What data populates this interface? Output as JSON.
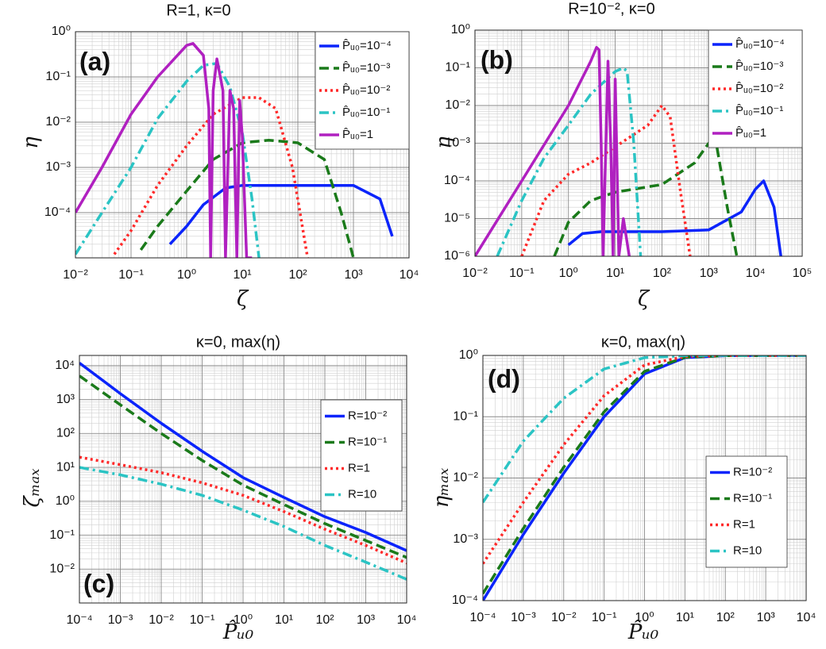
{
  "chart_data": [
    {
      "type": "line",
      "title": "R=1, κ=0",
      "panel_label": "(a)",
      "x_label": "ζ",
      "y_label": "η",
      "log_x": true,
      "log_y": true,
      "grid": true,
      "legend": "upper right",
      "xlim": [
        0.01,
        10000
      ],
      "ylim": [
        1e-05,
        1
      ],
      "xticks": [
        {
          "value": 0.01,
          "label": "10⁻²"
        },
        {
          "value": 0.1,
          "label": "10⁻¹"
        },
        {
          "value": 1,
          "label": "10⁰"
        },
        {
          "value": 10,
          "label": "10¹"
        },
        {
          "value": 100,
          "label": "10²"
        },
        {
          "value": 1000,
          "label": "10³"
        },
        {
          "value": 10000,
          "label": "10⁴"
        }
      ],
      "yticks": [
        {
          "value": 0.0001,
          "label": "10⁻⁴"
        },
        {
          "value": 0.001,
          "label": "10⁻³"
        },
        {
          "value": 0.01,
          "label": "10⁻²"
        },
        {
          "value": 0.1,
          "label": "10⁻¹"
        },
        {
          "value": 1,
          "label": "10⁰"
        }
      ],
      "series": [
        {
          "name": "P̂ᵤ₀=10⁻⁴",
          "color": "#0b24fb",
          "style": "solid",
          "x": [
            0.5,
            1,
            2,
            5,
            10,
            100,
            1000,
            3000,
            5000
          ],
          "values": [
            2e-05,
            5e-05,
            0.00015,
            0.00035,
            0.0004,
            0.0004,
            0.0004,
            0.0002,
            3e-05
          ]
        },
        {
          "name": "P̂ᵤ₀=10⁻³",
          "color": "#1a7a1a",
          "style": "dashed",
          "x": [
            0.15,
            0.3,
            1,
            3,
            10,
            30,
            100,
            300,
            600,
            1000
          ],
          "values": [
            1.5e-05,
            5e-05,
            0.0003,
            0.0015,
            0.0035,
            0.004,
            0.0035,
            0.0015,
            0.0001,
            1e-05
          ]
        },
        {
          "name": "P̂ᵤ₀=10⁻²",
          "color": "#ff2a2a",
          "style": "dotted",
          "x": [
            0.05,
            0.1,
            0.3,
            1,
            3,
            10,
            20,
            40,
            80,
            150
          ],
          "values": [
            1.2e-05,
            4e-05,
            0.0004,
            0.003,
            0.015,
            0.035,
            0.035,
            0.02,
            0.001,
            1e-05
          ]
        },
        {
          "name": "P̂ᵤ₀=10⁻¹",
          "color": "#2bc4c4",
          "style": "dashdot",
          "x": [
            0.01,
            0.03,
            0.1,
            0.3,
            1,
            2,
            3.5,
            6,
            10,
            15,
            20
          ],
          "values": [
            1.2e-05,
            0.0001,
            0.001,
            0.012,
            0.08,
            0.18,
            0.2,
            0.06,
            0.006,
            0.0002,
            1e-05
          ]
        },
        {
          "name": "P̂ᵤ₀=1",
          "color": "#b020c0",
          "style": "solid",
          "x": [
            0.01,
            0.03,
            0.1,
            0.3,
            1,
            1.3,
            2,
            2.5,
            2.7,
            3,
            3.5,
            4.5,
            5,
            6,
            7,
            8,
            9,
            10,
            12,
            15
          ],
          "values": [
            0.0001,
            0.001,
            0.015,
            0.1,
            0.5,
            0.55,
            0.3,
            0.02,
            1e-05,
            0.05,
            0.25,
            0.05,
            1e-05,
            0.05,
            0.02,
            1e-05,
            0.03,
            0.005,
            1e-05,
            1e-05
          ]
        }
      ]
    },
    {
      "type": "line",
      "title": "R=10⁻², κ=0",
      "panel_label": "(b)",
      "x_label": "ζ",
      "y_label": "η",
      "log_x": true,
      "log_y": true,
      "grid": true,
      "legend": "upper right",
      "xlim": [
        0.01,
        100000
      ],
      "ylim": [
        1e-06,
        1
      ],
      "xticks": [
        {
          "value": 0.01,
          "label": "10⁻²"
        },
        {
          "value": 0.1,
          "label": "10⁻¹"
        },
        {
          "value": 1,
          "label": "10⁰"
        },
        {
          "value": 10,
          "label": "10¹"
        },
        {
          "value": 100,
          "label": "10²"
        },
        {
          "value": 1000,
          "label": "10³"
        },
        {
          "value": 10000,
          "label": "10⁴"
        },
        {
          "value": 100000,
          "label": "10⁵"
        }
      ],
      "yticks": [
        {
          "value": 1e-06,
          "label": "10⁻⁶"
        },
        {
          "value": 1e-05,
          "label": "10⁻⁵"
        },
        {
          "value": 0.0001,
          "label": "10⁻⁴"
        },
        {
          "value": 0.001,
          "label": "10⁻³"
        },
        {
          "value": 0.01,
          "label": "10⁻²"
        },
        {
          "value": 0.1,
          "label": "10⁻¹"
        },
        {
          "value": 1,
          "label": "10⁰"
        }
      ],
      "series": [
        {
          "name": "P̂ᵤ₀=10⁻⁴",
          "color": "#0b24fb",
          "style": "solid",
          "x": [
            1,
            2,
            5,
            10,
            100,
            1000,
            5000,
            10000,
            15000,
            25000,
            35000
          ],
          "values": [
            2e-06,
            4e-06,
            4.5e-06,
            4.5e-06,
            4.5e-06,
            5e-06,
            1.5e-05,
            6e-05,
            0.0001,
            2e-05,
            1e-06
          ]
        },
        {
          "name": "P̂ᵤ₀=10⁻³",
          "color": "#1a7a1a",
          "style": "dashed",
          "x": [
            0.5,
            1,
            3,
            10,
            100,
            500,
            1000,
            1500,
            2500,
            4000
          ],
          "values": [
            1e-06,
            8e-06,
            3e-05,
            5e-05,
            8e-05,
            0.0003,
            0.001,
            0.0008,
            2e-05,
            1e-06
          ]
        },
        {
          "name": "P̂ᵤ₀=10⁻²",
          "color": "#ff2a2a",
          "style": "dotted",
          "x": [
            0.1,
            0.3,
            1,
            3,
            10,
            50,
            100,
            150,
            250,
            400
          ],
          "values": [
            1e-06,
            3e-05,
            0.00015,
            0.0003,
            0.0008,
            0.003,
            0.01,
            0.005,
            5e-05,
            1e-06
          ]
        },
        {
          "name": "P̂ᵤ₀=10⁻¹",
          "color": "#2bc4c4",
          "style": "dashdot",
          "x": [
            0.03,
            0.1,
            0.3,
            1,
            3,
            10,
            15,
            18,
            25,
            35
          ],
          "values": [
            1e-06,
            3e-05,
            0.0004,
            0.003,
            0.02,
            0.08,
            0.1,
            0.08,
            0.001,
            1e-06
          ]
        },
        {
          "name": "P̂ᵤ₀=1",
          "color": "#b020c0",
          "style": "solid",
          "x": [
            0.01,
            0.1,
            1,
            3,
            4,
            4.5,
            5,
            5.5,
            7,
            8,
            9,
            10,
            12,
            15,
            20
          ],
          "values": [
            1e-06,
            0.0001,
            0.01,
            0.15,
            0.35,
            0.3,
            0.001,
            1e-06,
            0.15,
            0.001,
            1e-06,
            0.05,
            1e-06,
            1e-05,
            1e-06
          ]
        }
      ]
    },
    {
      "type": "line",
      "title": "κ=0, max(η)",
      "panel_label": "(c)",
      "x_label": "P̂ᵤ₀",
      "y_label": "ζₘₐₓ",
      "log_x": true,
      "log_y": true,
      "grid": true,
      "legend": "right",
      "xlim": [
        0.0001,
        10000
      ],
      "ylim": [
        0.001,
        20000
      ],
      "xticks": [
        {
          "value": 0.0001,
          "label": "10⁻⁴"
        },
        {
          "value": 0.001,
          "label": "10⁻³"
        },
        {
          "value": 0.01,
          "label": "10⁻²"
        },
        {
          "value": 0.1,
          "label": "10⁻¹"
        },
        {
          "value": 1,
          "label": "10⁰"
        },
        {
          "value": 10,
          "label": "10¹"
        },
        {
          "value": 100,
          "label": "10²"
        },
        {
          "value": 1000,
          "label": "10³"
        },
        {
          "value": 10000,
          "label": "10⁴"
        }
      ],
      "yticks": [
        {
          "value": 0.01,
          "label": "10⁻²"
        },
        {
          "value": 0.1,
          "label": "10⁻¹"
        },
        {
          "value": 1,
          "label": "10⁰"
        },
        {
          "value": 10,
          "label": "10¹"
        },
        {
          "value": 100,
          "label": "10²"
        },
        {
          "value": 1000,
          "label": "10³"
        },
        {
          "value": 10000,
          "label": "10⁴"
        }
      ],
      "series": [
        {
          "name": "R=10⁻²",
          "color": "#0b24fb",
          "style": "solid",
          "x": [
            0.0001,
            0.001,
            0.01,
            0.1,
            1,
            10,
            100,
            1000,
            10000
          ],
          "values": [
            12000,
            1500,
            200,
            30,
            5,
            1.3,
            0.35,
            0.12,
            0.035
          ]
        },
        {
          "name": "R=10⁻¹",
          "color": "#1a7a1a",
          "style": "dashed",
          "x": [
            0.0001,
            0.001,
            0.01,
            0.1,
            1,
            10,
            100,
            1000,
            10000
          ],
          "values": [
            5000,
            700,
            100,
            16,
            3,
            0.8,
            0.22,
            0.07,
            0.022
          ]
        },
        {
          "name": "R=1",
          "color": "#ff2a2a",
          "style": "dotted",
          "x": [
            0.0001,
            0.001,
            0.01,
            0.1,
            1,
            10,
            100,
            1000,
            10000
          ],
          "values": [
            20,
            12,
            7,
            3.5,
            1.5,
            0.5,
            0.15,
            0.05,
            0.015
          ]
        },
        {
          "name": "R=10",
          "color": "#2bc4c4",
          "style": "dashdot",
          "x": [
            0.0001,
            0.001,
            0.01,
            0.1,
            1,
            10,
            100,
            1000,
            10000
          ],
          "values": [
            10,
            6,
            3.2,
            1.5,
            0.55,
            0.18,
            0.05,
            0.016,
            0.005
          ]
        }
      ]
    },
    {
      "type": "line",
      "title": "κ=0, max(η)",
      "panel_label": "(d)",
      "x_label": "P̂ᵤ₀",
      "y_label": "ηₘₐₓ",
      "log_x": true,
      "log_y": true,
      "grid": true,
      "legend": "lower right",
      "xlim": [
        0.0001,
        10000
      ],
      "ylim": [
        0.0001,
        1
      ],
      "xticks": [
        {
          "value": 0.0001,
          "label": "10⁻⁴"
        },
        {
          "value": 0.001,
          "label": "10⁻³"
        },
        {
          "value": 0.01,
          "label": "10⁻²"
        },
        {
          "value": 0.1,
          "label": "10⁻¹"
        },
        {
          "value": 1,
          "label": "10⁰"
        },
        {
          "value": 10,
          "label": "10¹"
        },
        {
          "value": 100,
          "label": "10²"
        },
        {
          "value": 1000,
          "label": "10³"
        },
        {
          "value": 10000,
          "label": "10⁴"
        }
      ],
      "yticks": [
        {
          "value": 0.0001,
          "label": "10⁻⁴"
        },
        {
          "value": 0.001,
          "label": "10⁻³"
        },
        {
          "value": 0.01,
          "label": "10⁻²"
        },
        {
          "value": 0.1,
          "label": "10⁻¹"
        },
        {
          "value": 1,
          "label": "10⁰"
        }
      ],
      "series": [
        {
          "name": "R=10⁻²",
          "color": "#0b24fb",
          "style": "solid",
          "x": [
            0.0001,
            0.001,
            0.01,
            0.1,
            1,
            10,
            100,
            1000,
            10000
          ],
          "values": [
            0.0001,
            0.0012,
            0.012,
            0.1,
            0.5,
            0.92,
            0.99,
            1,
            1
          ]
        },
        {
          "name": "R=10⁻¹",
          "color": "#1a7a1a",
          "style": "dashed",
          "x": [
            0.0001,
            0.001,
            0.01,
            0.1,
            1,
            10,
            100,
            1000,
            10000
          ],
          "values": [
            0.00013,
            0.0015,
            0.015,
            0.12,
            0.55,
            0.93,
            0.99,
            1,
            1
          ]
        },
        {
          "name": "R=1",
          "color": "#ff2a2a",
          "style": "dotted",
          "x": [
            0.0001,
            0.001,
            0.01,
            0.1,
            1,
            10,
            100,
            1000,
            10000
          ],
          "values": [
            0.0004,
            0.004,
            0.035,
            0.22,
            0.7,
            0.96,
            1,
            1,
            1
          ]
        },
        {
          "name": "R=10",
          "color": "#2bc4c4",
          "style": "dashdot",
          "x": [
            0.0001,
            0.001,
            0.01,
            0.1,
            1,
            10,
            100,
            1000,
            10000
          ],
          "values": [
            0.004,
            0.04,
            0.2,
            0.6,
            0.92,
            0.99,
            1,
            1,
            1
          ]
        }
      ]
    }
  ]
}
